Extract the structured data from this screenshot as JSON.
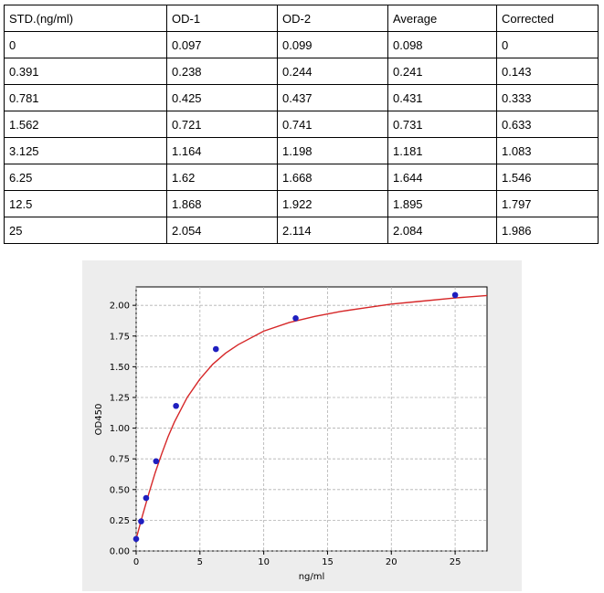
{
  "table": {
    "headers": [
      "STD.(ng/ml)",
      "OD-1",
      "OD-2",
      "Average",
      "Corrected"
    ],
    "rows": [
      [
        "0",
        "0.097",
        "0.099",
        "0.098",
        "0"
      ],
      [
        "0.391",
        "0.238",
        "0.244",
        "0.241",
        "0.143"
      ],
      [
        "0.781",
        "0.425",
        "0.437",
        "0.431",
        "0.333"
      ],
      [
        "1.562",
        "0.721",
        "0.741",
        "0.731",
        "0.633"
      ],
      [
        "3.125",
        "1.164",
        "1.198",
        "1.181",
        "1.083"
      ],
      [
        "6.25",
        "1.62",
        "1.668",
        "1.644",
        "1.546"
      ],
      [
        "12.5",
        "1.868",
        "1.922",
        "1.895",
        "1.797"
      ],
      [
        "25",
        "2.054",
        "2.114",
        "2.084",
        "1.986"
      ]
    ]
  },
  "chart_data": {
    "type": "scatter",
    "title": "",
    "xlabel": "ng/ml",
    "ylabel": "OD450",
    "xlim": [
      0,
      27.5
    ],
    "ylim": [
      0,
      2.15
    ],
    "xticks": [
      0,
      5,
      10,
      15,
      20,
      25
    ],
    "xtick_labels": [
      "0",
      "5",
      "10",
      "15",
      "20",
      "25"
    ],
    "yticks": [
      0.0,
      0.25,
      0.5,
      0.75,
      1.0,
      1.25,
      1.5,
      1.75,
      2.0
    ],
    "ytick_labels": [
      "0.00",
      "0.25",
      "0.50",
      "0.75",
      "1.00",
      "1.25",
      "1.50",
      "1.75",
      "2.00"
    ],
    "grid": true,
    "series": [
      {
        "kind": "points",
        "color": "#1f1fbf",
        "x": [
          0,
          0.391,
          0.781,
          1.562,
          3.125,
          6.25,
          12.5,
          25
        ],
        "y": [
          0.098,
          0.241,
          0.431,
          0.731,
          1.181,
          1.644,
          1.895,
          2.084
        ]
      },
      {
        "kind": "fit-curve",
        "color": "#d62728",
        "x": [
          0,
          0.5,
          1,
          1.5,
          2,
          2.5,
          3,
          4,
          5,
          6,
          7,
          8,
          10,
          12,
          14,
          16,
          18,
          20,
          22,
          25,
          27.5
        ],
        "y": [
          0.098,
          0.29,
          0.47,
          0.64,
          0.79,
          0.93,
          1.05,
          1.25,
          1.4,
          1.52,
          1.61,
          1.68,
          1.79,
          1.86,
          1.91,
          1.95,
          1.98,
          2.01,
          2.03,
          2.06,
          2.08
        ]
      }
    ]
  }
}
